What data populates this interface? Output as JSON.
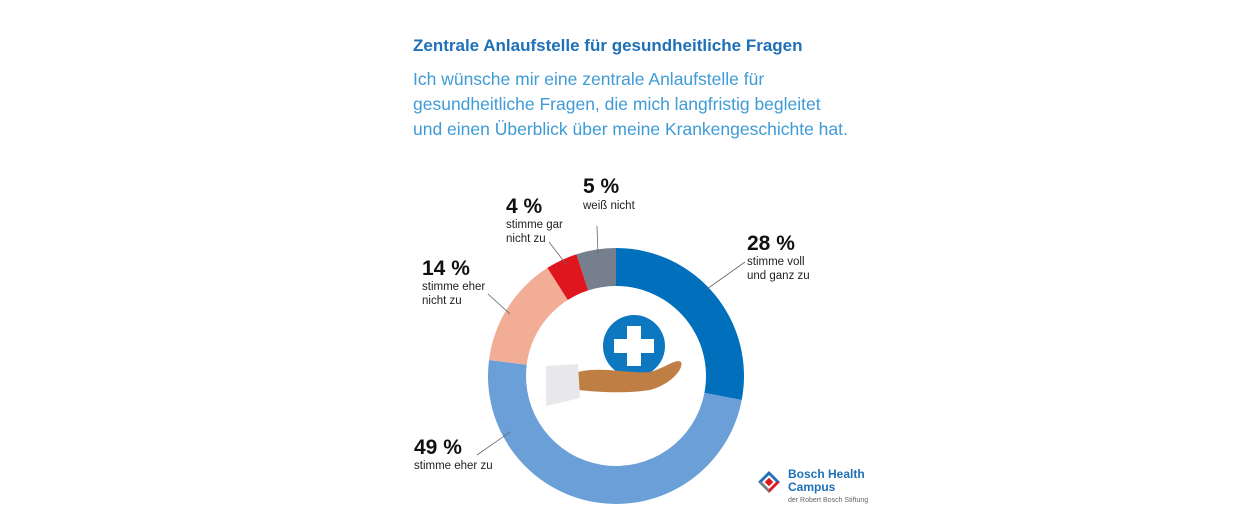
{
  "header": {
    "title": "Zentrale Anlaufstelle für gesundheitliche Fragen",
    "subtitle": "Ich wünsche mir eine zentrale Anlaufstelle für gesundheitliche Fragen, die mich langfristig begleitet und einen Überblick über meine Krankengeschichte hat."
  },
  "chart_data": {
    "type": "pie",
    "donut": true,
    "title": "Zentrale Anlaufstelle für gesundheitliche Fragen",
    "slices": [
      {
        "label": "stimme voll und ganz zu",
        "value": 28,
        "value_label": "28 %",
        "color": "#0070bd"
      },
      {
        "label": "stimme eher zu",
        "value": 49,
        "value_label": "49 %",
        "color": "#6a9fd7"
      },
      {
        "label": "stimme eher nicht zu",
        "value": 14,
        "value_label": "14 %",
        "color": "#f2ad97"
      },
      {
        "label": "stimme gar nicht zu",
        "value": 4,
        "value_label": "4 %",
        "color": "#e0161f"
      },
      {
        "label": "weiß nicht",
        "value": 5,
        "value_label": "5 %",
        "color": "#757f8e"
      }
    ]
  },
  "icon": {
    "name": "hand-with-medical-cross-icon",
    "cross_color": "#0d77c0",
    "hand_color": "#bf7e44",
    "sleeve_color": "#e8e8ea"
  },
  "logo": {
    "name_line1": "Bosch Health",
    "name_line2": "Campus",
    "tagline": "der Robert Bosch Stiftung",
    "colors": [
      "#1f70b7",
      "#e0161f",
      "#757f8e"
    ]
  }
}
